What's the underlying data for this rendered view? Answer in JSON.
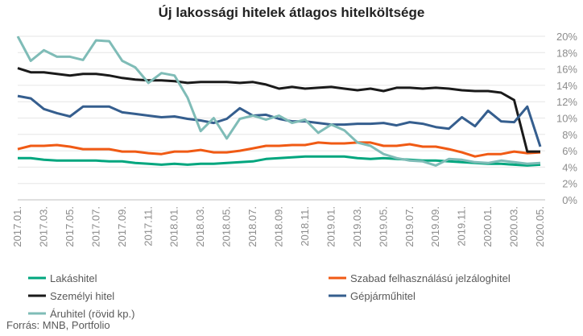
{
  "chart_data": {
    "type": "line",
    "title": "Új lakossági hitelek átlagos hitelköltsége",
    "ylim": [
      0,
      20
    ],
    "y_ticks": [
      "0%",
      "2%",
      "4%",
      "6%",
      "8%",
      "10%",
      "12%",
      "14%",
      "16%",
      "18%",
      "20%"
    ],
    "y_tick_values": [
      0,
      2,
      4,
      6,
      8,
      10,
      12,
      14,
      16,
      18,
      20
    ],
    "x": [
      "2017.01.",
      "2017.02.",
      "2017.03.",
      "2017.04.",
      "2017.05.",
      "2017.06.",
      "2017.07.",
      "2017.08.",
      "2017.09.",
      "2017.10.",
      "2017.11.",
      "2017.12.",
      "2018.01.",
      "2018.02.",
      "2018.03.",
      "2018.04.",
      "2018.05.",
      "2018.06.",
      "2018.07.",
      "2018.08.",
      "2018.09.",
      "2018.10.",
      "2018.11.",
      "2018.12.",
      "2019.01.",
      "2019.02.",
      "2019.03.",
      "2019.04.",
      "2019.05.",
      "2019.06.",
      "2019.07.",
      "2019.08.",
      "2019.09.",
      "2019.10.",
      "2019.11.",
      "2019.12.",
      "2020.01.",
      "2020.02.",
      "2020.03.",
      "2020.04.",
      "2020.05."
    ],
    "x_tick_labels": [
      "2017.01.",
      "2017.03.",
      "2017.05.",
      "2017.07.",
      "2017.09.",
      "2017.11.",
      "2018.01.",
      "2018.03.",
      "2018.05.",
      "2018.07.",
      "2018.09.",
      "2018.11.",
      "2019.01.",
      "2019.03.",
      "2019.05.",
      "2019.07.",
      "2019.09.",
      "2019.11.",
      "2020.01.",
      "2020.03.",
      "2020.05."
    ],
    "grid": true,
    "legend_position": "bottom",
    "series": [
      {
        "name": "Lakáshitel",
        "color": "#00a67e",
        "values": [
          5.1,
          5.1,
          4.9,
          4.8,
          4.8,
          4.8,
          4.8,
          4.7,
          4.7,
          4.5,
          4.4,
          4.3,
          4.4,
          4.3,
          4.4,
          4.4,
          4.5,
          4.6,
          4.7,
          5.0,
          5.1,
          5.2,
          5.3,
          5.3,
          5.3,
          5.3,
          5.1,
          5.0,
          5.1,
          5.0,
          4.9,
          4.8,
          4.8,
          4.7,
          4.6,
          4.5,
          4.4,
          4.4,
          4.3,
          4.2,
          4.3
        ]
      },
      {
        "name": "Szabad felhasználású jelzáloghitel",
        "color": "#f05a14",
        "values": [
          6.2,
          6.6,
          6.6,
          6.7,
          6.5,
          6.2,
          6.2,
          6.2,
          5.9,
          5.9,
          5.7,
          5.6,
          5.9,
          5.9,
          6.1,
          5.8,
          5.8,
          6.0,
          6.3,
          6.6,
          6.6,
          6.7,
          6.7,
          7.0,
          6.9,
          6.9,
          7.0,
          7.0,
          6.6,
          6.6,
          6.8,
          6.5,
          6.5,
          6.2,
          5.8,
          5.3,
          5.6,
          5.6,
          5.9,
          5.7,
          5.8
        ]
      },
      {
        "name": "Személyi hitel",
        "color": "#1a1a1a",
        "values": [
          16.1,
          15.6,
          15.6,
          15.4,
          15.2,
          15.4,
          15.4,
          15.2,
          14.9,
          14.7,
          14.6,
          14.6,
          14.5,
          14.3,
          14.4,
          14.4,
          14.4,
          14.3,
          14.4,
          14.1,
          13.6,
          13.8,
          13.6,
          13.7,
          13.8,
          13.6,
          13.4,
          13.6,
          13.3,
          13.7,
          13.7,
          13.6,
          13.7,
          13.6,
          13.4,
          13.3,
          13.3,
          13.1,
          12.2,
          5.9,
          5.9
        ]
      },
      {
        "name": "Gépjárműhitel",
        "color": "#355e8e",
        "values": [
          12.7,
          12.4,
          11.1,
          10.6,
          10.2,
          11.4,
          11.4,
          11.4,
          10.7,
          10.5,
          10.3,
          10.1,
          10.2,
          9.9,
          9.7,
          9.4,
          9.9,
          11.2,
          10.3,
          10.4,
          9.9,
          9.6,
          9.6,
          9.4,
          9.2,
          9.2,
          9.3,
          9.3,
          9.4,
          9.1,
          9.5,
          9.3,
          8.9,
          8.7,
          10.1,
          9.0,
          10.9,
          9.6,
          9.5,
          11.4,
          6.5
        ]
      },
      {
        "name": "Áruhitel (rövid kp.)",
        "color": "#7fbcb7",
        "values": [
          20.0,
          17.0,
          18.3,
          17.5,
          17.5,
          17.1,
          19.5,
          19.4,
          17.0,
          16.2,
          14.3,
          15.5,
          15.2,
          12.5,
          8.4,
          10.0,
          7.5,
          9.9,
          10.3,
          9.8,
          10.3,
          9.4,
          9.8,
          8.2,
          9.2,
          8.5,
          7.0,
          6.6,
          5.6,
          5.1,
          4.8,
          4.7,
          4.2,
          5.0,
          4.9,
          4.6,
          4.5,
          4.8,
          4.6,
          4.4,
          4.5
        ]
      }
    ]
  },
  "source": "Forrás: MNB, Portfolio"
}
